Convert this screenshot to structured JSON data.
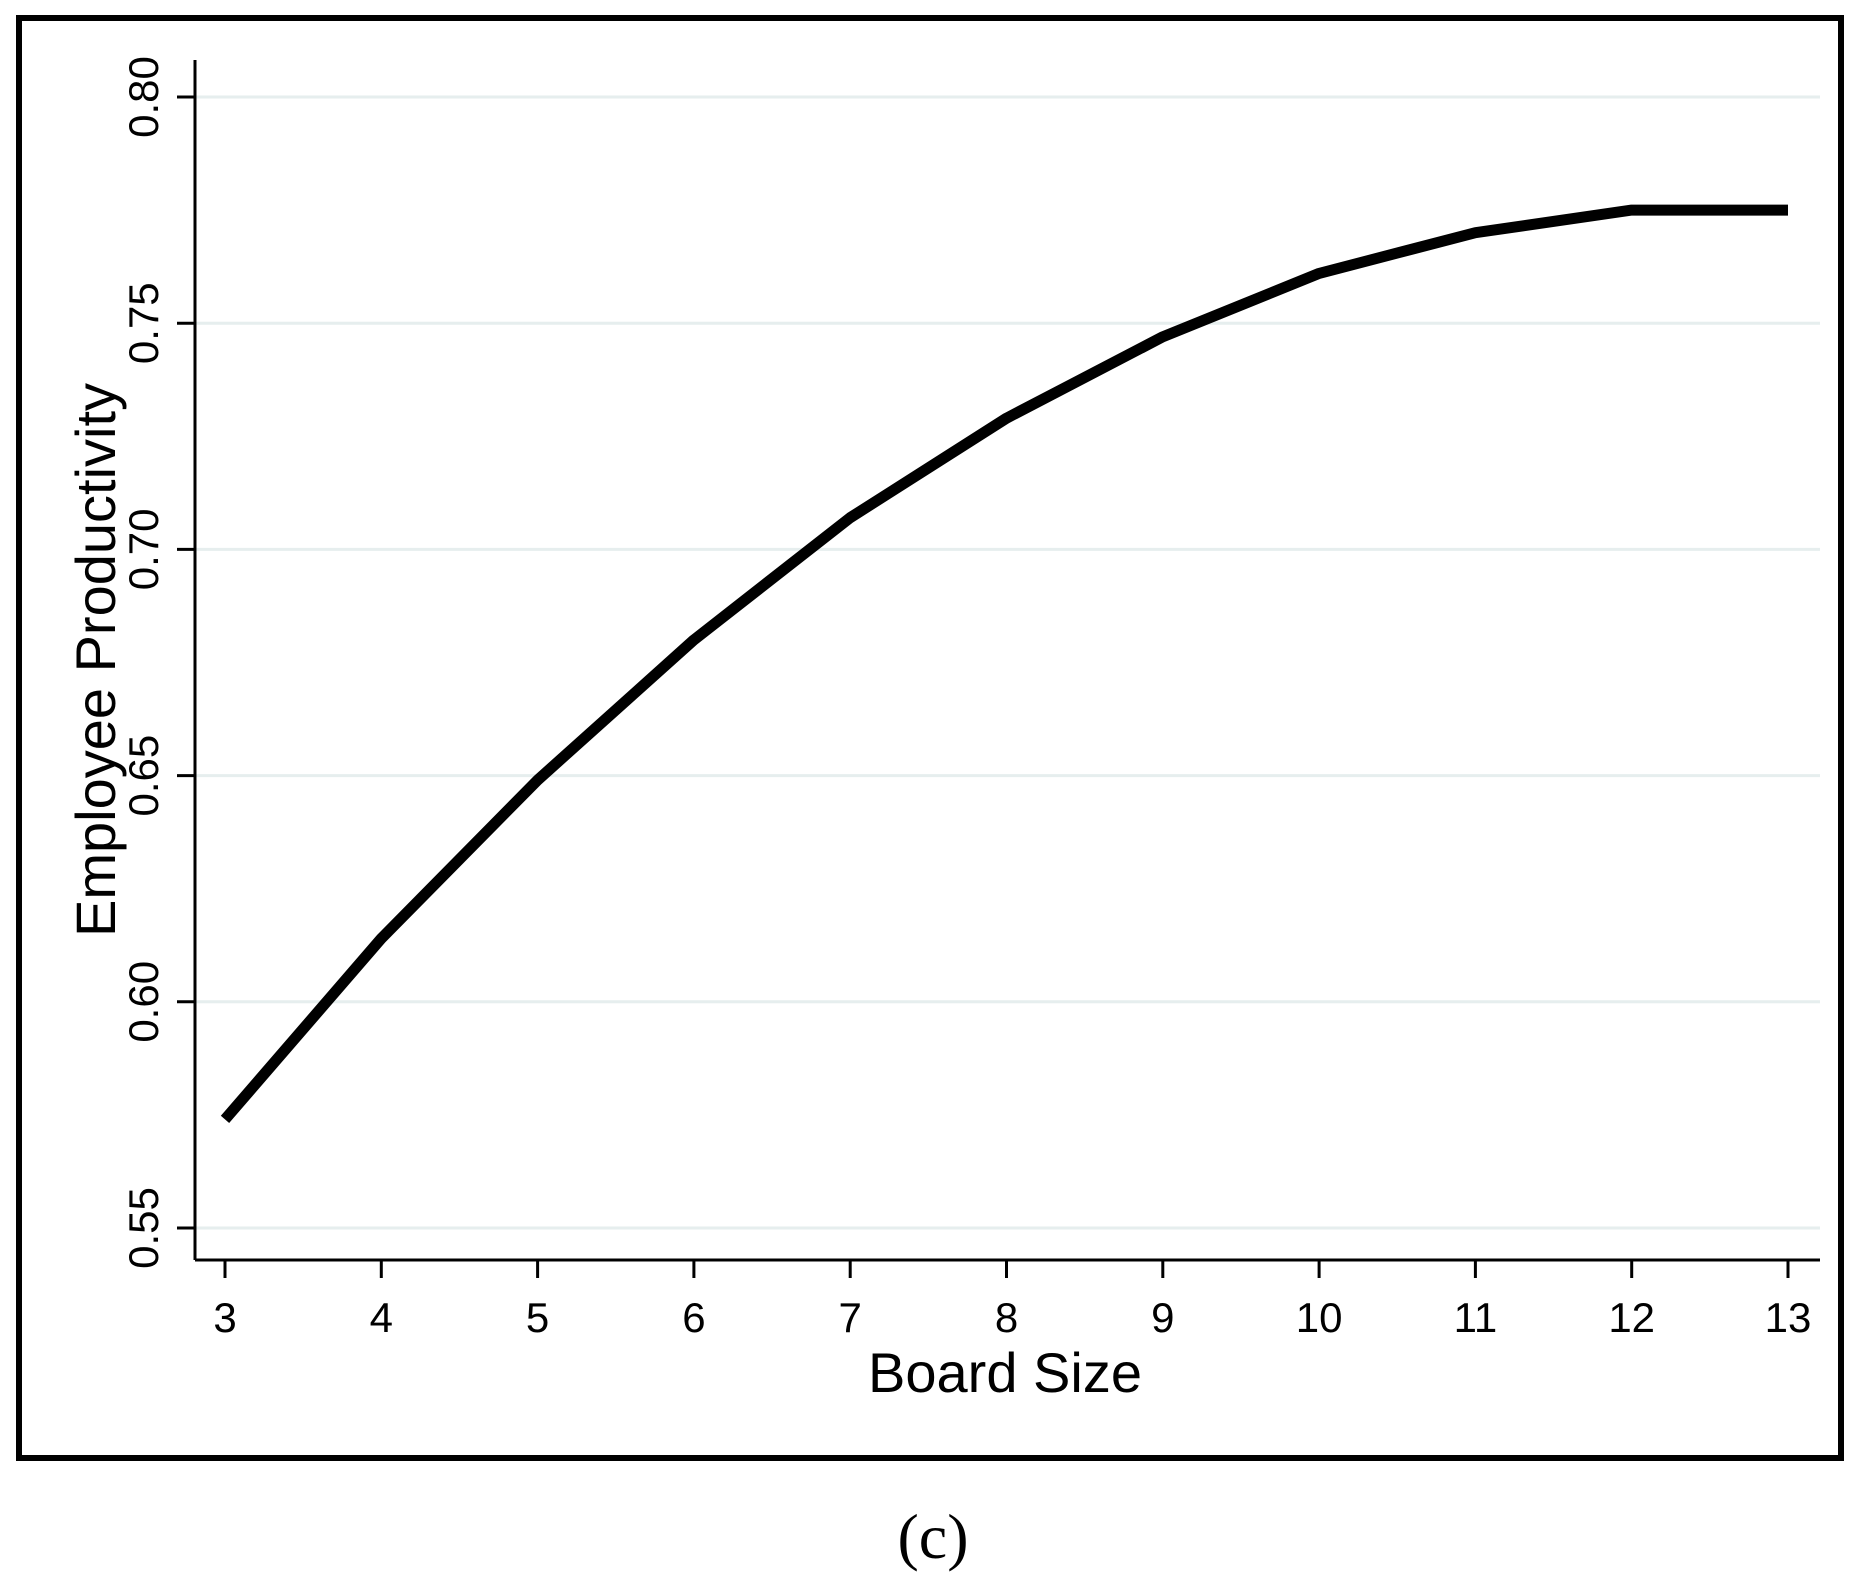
{
  "chart_data": {
    "type": "line",
    "x": [
      3,
      4,
      5,
      6,
      7,
      8,
      9,
      10,
      11,
      12,
      13
    ],
    "series": [
      {
        "values": [
          0.574,
          0.614,
          0.649,
          0.68,
          0.707,
          0.729,
          0.747,
          0.761,
          0.77,
          0.775,
          0.775
        ]
      }
    ],
    "xlabel": "Board Size",
    "ylabel": "Employee Productivity",
    "xlim": [
      3,
      13
    ],
    "ylim": [
      0.55,
      0.8
    ],
    "xticks": [
      3,
      4,
      5,
      6,
      7,
      8,
      9,
      10,
      11,
      12,
      13
    ],
    "xtick_labels": [
      "3",
      "4",
      "5",
      "6",
      "7",
      "8",
      "9",
      "10",
      "11",
      "12",
      "13"
    ],
    "yticks": [
      0.55,
      0.6,
      0.65,
      0.7,
      0.75,
      0.8
    ],
    "ytick_labels": [
      "0.55",
      "0.60",
      "0.65",
      "0.70",
      "0.75",
      "0.80"
    ],
    "grid": true,
    "line_color": "#000000",
    "grid_color": "#e6eeee"
  },
  "caption": "(c)"
}
